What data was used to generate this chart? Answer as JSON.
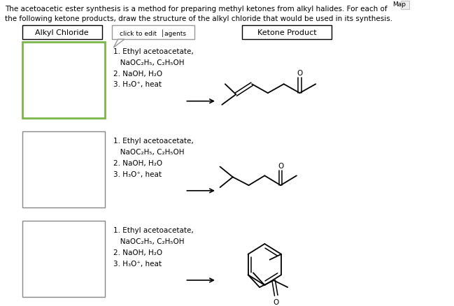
{
  "title_line1": "The acetoacetic ester synthesis is a method for preparing methyl ketones from alkyl halides. For each of",
  "title_line2": "the following ketone products, draw the structure of the alkyl chloride that would be used in its synthesis.",
  "header_alkyl": "Alkyl Chloride",
  "header_reagents": "click to edit │agents",
  "header_ketone": "Ketone Product",
  "map_text": "Map",
  "reagent_lines_1": [
    "1. Ethyl acetoacetate,",
    "   NaOC₂H₅, C₂H₅OH",
    "2. NaOH, H₂O",
    "3. H₃O⁺, heat"
  ],
  "reagent_lines_2": [
    "1. Ethyl acetoacetate,",
    "   NaOC₂H₅, C₂H₅OH",
    "2. NaOH, H₂O",
    "3. H₃O⁺, heat"
  ],
  "reagent_lines_3": [
    "1. Ethyl acetoacetate,",
    "   NaOC₂H₅, C₂H₅OH",
    "2. NaOH, H₂O",
    "3. H₃O⁺, heat"
  ],
  "bg_color": "#ffffff",
  "grid_line_color": "#a8d8ea",
  "grid_border_green": "#7ab648",
  "grid_border_gray": "#888888",
  "font_size_title": 7.5,
  "font_size_header": 8.0,
  "font_size_reagent": 7.5
}
